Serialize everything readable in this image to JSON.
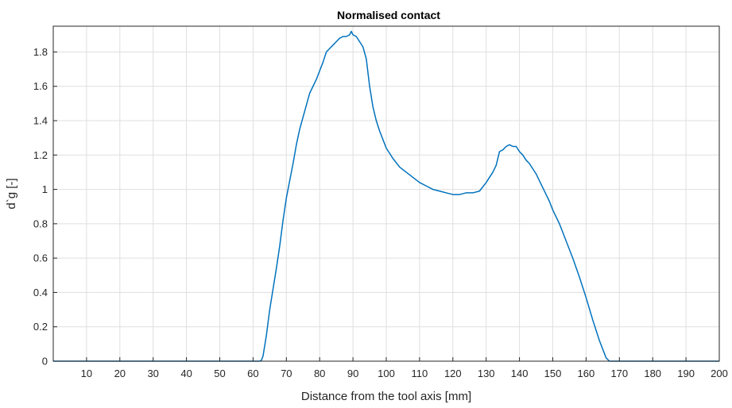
{
  "chart_data": {
    "type": "line",
    "title": "Normalised contact",
    "xlabel": "Distance from the tool axis [mm]",
    "ylabel": "d`g [-]",
    "xlim": [
      0,
      200
    ],
    "ylim": [
      0,
      1.95
    ],
    "grid": true,
    "xticks": [
      10,
      20,
      30,
      40,
      50,
      60,
      70,
      80,
      90,
      100,
      110,
      120,
      130,
      140,
      150,
      160,
      170,
      180,
      190,
      200
    ],
    "yticks": [
      0,
      0.2,
      0.4,
      0.6,
      0.8,
      1,
      1.2,
      1.4,
      1.6,
      1.8
    ],
    "ytick_labels": [
      "0",
      "0.2",
      "0.4",
      "0.6",
      "0.8",
      "1",
      "1.2",
      "1.4",
      "1.6",
      "1.8"
    ],
    "series": [
      {
        "color": "#0072BD",
        "x": [
          0,
          62,
          62.5,
          63,
          64,
          65,
          66,
          67,
          68,
          69,
          70,
          71,
          72,
          73,
          74,
          75,
          76,
          77,
          78,
          79,
          80,
          81,
          82,
          83,
          84,
          85,
          86,
          87,
          88,
          89,
          89.5,
          90,
          91,
          92,
          93,
          94,
          95,
          96,
          97,
          98,
          99,
          100,
          102,
          104,
          106,
          108,
          110,
          112,
          114,
          116,
          118,
          120,
          122,
          124,
          126,
          128,
          130,
          131,
          132,
          133,
          134,
          135,
          136,
          137,
          138,
          139,
          140,
          141,
          142,
          143,
          144,
          145,
          146,
          147,
          148,
          149,
          150,
          152,
          154,
          156,
          158,
          160,
          162,
          164,
          166,
          167,
          168,
          200
        ],
        "y": [
          0,
          0,
          0.005,
          0.03,
          0.15,
          0.3,
          0.42,
          0.54,
          0.67,
          0.82,
          0.95,
          1.05,
          1.15,
          1.26,
          1.35,
          1.42,
          1.49,
          1.56,
          1.6,
          1.64,
          1.69,
          1.74,
          1.8,
          1.82,
          1.84,
          1.86,
          1.88,
          1.89,
          1.89,
          1.9,
          1.92,
          1.9,
          1.89,
          1.86,
          1.83,
          1.76,
          1.6,
          1.48,
          1.4,
          1.34,
          1.29,
          1.24,
          1.18,
          1.13,
          1.1,
          1.07,
          1.04,
          1.02,
          1.0,
          0.99,
          0.98,
          0.97,
          0.97,
          0.98,
          0.98,
          0.99,
          1.04,
          1.07,
          1.1,
          1.14,
          1.22,
          1.23,
          1.25,
          1.26,
          1.25,
          1.25,
          1.22,
          1.2,
          1.17,
          1.15,
          1.12,
          1.09,
          1.05,
          1.01,
          0.97,
          0.93,
          0.88,
          0.8,
          0.7,
          0.6,
          0.49,
          0.37,
          0.24,
          0.12,
          0.02,
          0,
          0,
          0
        ]
      }
    ]
  }
}
